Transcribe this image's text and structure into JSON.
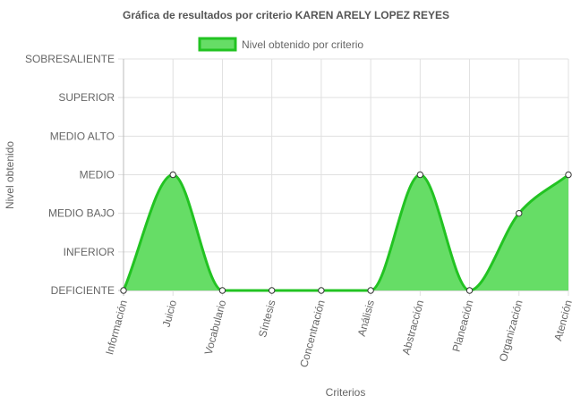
{
  "chart_data": {
    "type": "area",
    "title": "Gráfica de resultados por criterio KAREN ARELY LOPEZ REYES",
    "xlabel": "Criterios",
    "ylabel": "Nivel obtenido",
    "categories": [
      "Información",
      "Juicio",
      "Vocabulario",
      "Síntesis",
      "Concentración",
      "Análisis",
      "Abstracción",
      "Planeación",
      "Organización",
      "Atención"
    ],
    "y_levels": [
      "DEFICIENTE",
      "INFERIOR",
      "MEDIO BAJO",
      "MEDIO",
      "MEDIO ALTO",
      "SUPERIOR",
      "SOBRESALIENTE"
    ],
    "ylim": [
      0,
      6
    ],
    "series": [
      {
        "name": "Nivel obtenido por criterio",
        "values": [
          0,
          3,
          0,
          0,
          0,
          0,
          3,
          0,
          2,
          3
        ],
        "level_labels": [
          "DEFICIENTE",
          "MEDIO",
          "DEFICIENTE",
          "DEFICIENTE",
          "DEFICIENTE",
          "DEFICIENTE",
          "MEDIO",
          "DEFICIENTE",
          "MEDIO BAJO",
          "MEDIO"
        ]
      }
    ],
    "legend_position": "top",
    "grid": true,
    "colors": {
      "line": "#22c322",
      "fill": "#66dd66",
      "point_fill": "#ffffff",
      "point_stroke": "#333333",
      "grid": "#e0e0e0",
      "zero_line": "#bbbbbb"
    }
  }
}
